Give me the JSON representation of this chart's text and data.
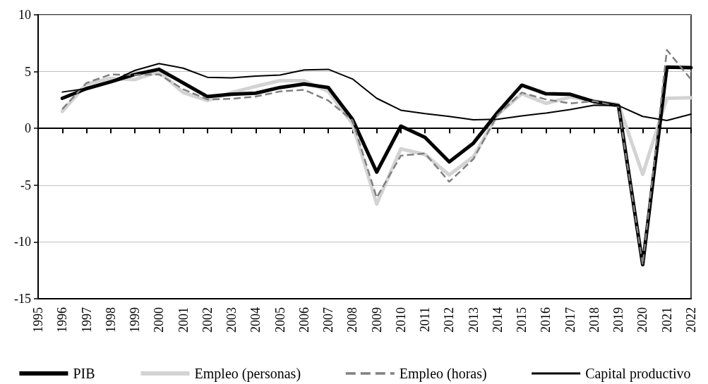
{
  "chart_data": {
    "type": "line",
    "x": [
      1996,
      1997,
      1998,
      1999,
      2000,
      2001,
      2002,
      2003,
      2004,
      2005,
      2006,
      2007,
      2008,
      2009,
      2010,
      2011,
      2012,
      2013,
      2014,
      2015,
      2016,
      2017,
      2018,
      2019,
      2020,
      2021,
      2022
    ],
    "xlim": [
      1995,
      2022
    ],
    "xticks": [
      1995,
      1996,
      1997,
      1998,
      1999,
      2000,
      2001,
      2002,
      2003,
      2004,
      2005,
      2006,
      2007,
      2008,
      2009,
      2010,
      2011,
      2012,
      2013,
      2014,
      2015,
      2016,
      2017,
      2018,
      2019,
      2020,
      2021,
      2022
    ],
    "ylim": [
      -15,
      10
    ],
    "yticks": [
      -15,
      -10,
      -5,
      0,
      5,
      10
    ],
    "grid": "y",
    "legend": "bottom",
    "marker": "none",
    "series": [
      {
        "name": "PIB",
        "color": "#000000",
        "values": [
          2.65,
          3.5,
          4.1,
          4.75,
          5.2,
          4.0,
          2.8,
          3.0,
          3.1,
          3.6,
          3.9,
          3.6,
          0.8,
          -3.85,
          0.2,
          -0.8,
          -2.95,
          -1.3,
          1.4,
          3.8,
          3.05,
          3.0,
          2.35,
          2.0,
          -12.0,
          5.4,
          5.35
        ]
      },
      {
        "name": "Empleo (personas)",
        "color": "#d3d3d3",
        "values": [
          1.5,
          3.9,
          4.4,
          4.3,
          5.0,
          3.15,
          2.45,
          3.15,
          3.7,
          4.2,
          4.2,
          3.25,
          0.4,
          -6.65,
          -1.8,
          -2.3,
          -4.1,
          -2.5,
          1.2,
          3.05,
          2.2,
          2.75,
          2.4,
          2.1,
          -4.05,
          2.65,
          2.7
        ]
      },
      {
        "name": "Empleo (horas)",
        "color": "#808080",
        "line_style": "dashed",
        "values": [
          1.7,
          4.0,
          4.75,
          4.7,
          4.75,
          3.45,
          2.55,
          2.6,
          2.8,
          3.25,
          3.4,
          2.45,
          0.7,
          -6.1,
          -2.4,
          -2.2,
          -4.7,
          -2.7,
          1.2,
          3.15,
          2.55,
          2.2,
          2.4,
          1.9,
          -12.0,
          6.9,
          4.3
        ]
      },
      {
        "name": "Capital productivo",
        "color": "#000000",
        "values": [
          3.2,
          3.5,
          4.1,
          5.1,
          5.7,
          5.3,
          4.5,
          4.45,
          4.6,
          4.7,
          5.15,
          5.2,
          4.35,
          2.65,
          1.6,
          1.3,
          1.05,
          0.75,
          0.8,
          1.1,
          1.35,
          1.65,
          2.05,
          2.0,
          1.05,
          0.7,
          1.25
        ]
      }
    ]
  }
}
